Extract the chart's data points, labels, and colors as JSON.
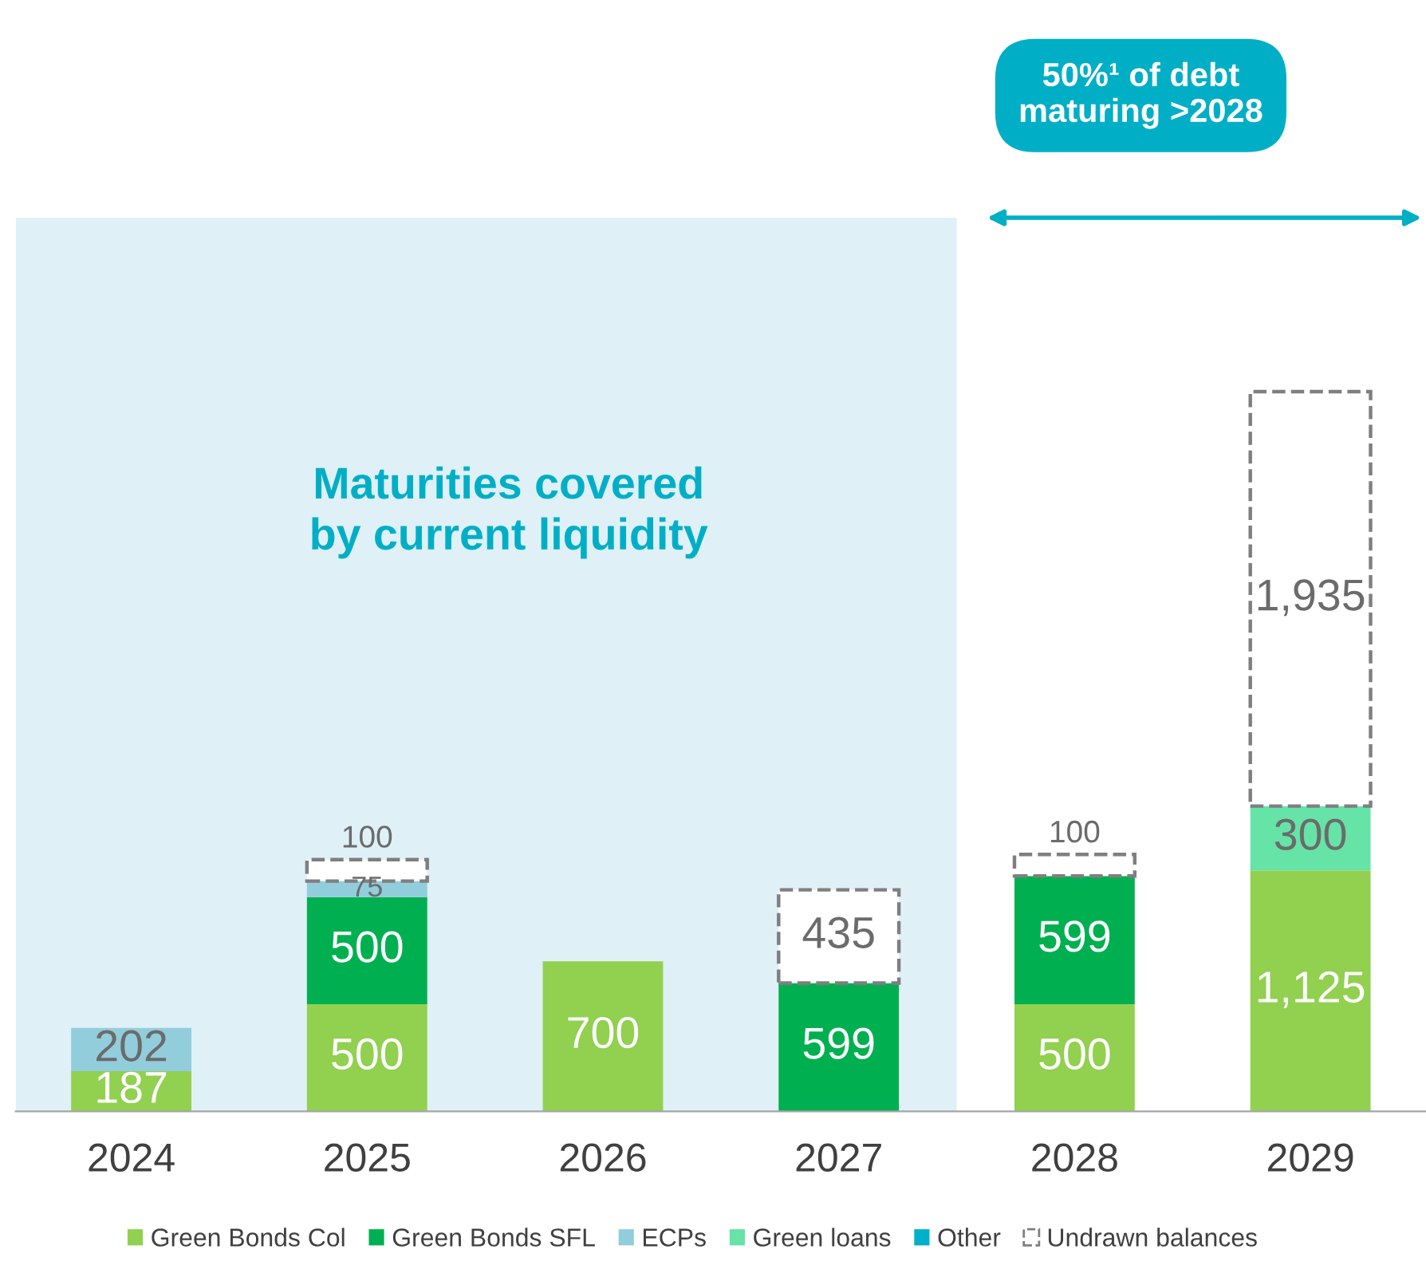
{
  "chart_data": {
    "type": "bar",
    "stacked": true,
    "legend": "bottom",
    "grid": false,
    "categories": [
      "2024",
      "2025",
      "2026",
      "2027",
      "2028",
      "2029"
    ],
    "series": [
      {
        "name": "Green Bonds Col",
        "color": "#92d050",
        "values": [
          187,
          500,
          700,
          null,
          500,
          1125
        ],
        "value_labels": [
          "187",
          "500",
          "700",
          null,
          "500",
          "1,125"
        ]
      },
      {
        "name": "Green Bonds SFL",
        "color": "#00b050",
        "values": [
          null,
          500,
          null,
          599,
          599,
          null
        ],
        "value_labels": [
          null,
          "500",
          null,
          "599",
          "599",
          null
        ]
      },
      {
        "name": "ECPs",
        "color": "#92cddc",
        "values": [
          202,
          75,
          null,
          null,
          null,
          null
        ],
        "value_labels": [
          "202",
          "75",
          null,
          null,
          null,
          null
        ]
      },
      {
        "name": "Green loans",
        "color": "#66e3a6",
        "values": [
          null,
          null,
          null,
          null,
          null,
          300
        ],
        "value_labels": [
          null,
          null,
          null,
          null,
          null,
          "300"
        ]
      },
      {
        "name": "Other",
        "color": "#00b0c8",
        "values": [
          null,
          null,
          null,
          null,
          null,
          null
        ]
      },
      {
        "name": "Undrawn balances",
        "color": "#ffffff",
        "line_style": "dashed",
        "values": [
          null,
          100,
          null,
          435,
          100,
          1935
        ],
        "value_labels": [
          null,
          "100",
          null,
          "435",
          "100",
          "1,935"
        ]
      }
    ],
    "bands": [
      {
        "axis": "x",
        "from": "2024",
        "to": "2027",
        "label": "Maturities covered\nby current liquidity",
        "color": "#dff0f7"
      }
    ],
    "annotations": [
      "50%¹ of debt\nmaturing >2028"
    ]
  }
}
